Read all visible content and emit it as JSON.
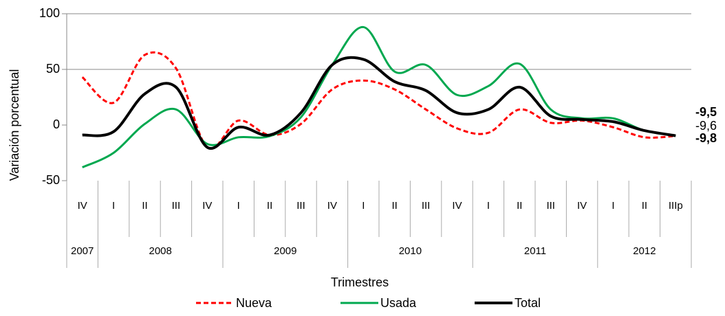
{
  "chart_data": {
    "type": "line",
    "y_label": "Variación porcentual",
    "x_label": "Trimestres",
    "categories": [
      "IV",
      "I",
      "II",
      "III",
      "IV",
      "I",
      "II",
      "III",
      "IV",
      "I",
      "II",
      "III",
      "IV",
      "I",
      "II",
      "III",
      "IV",
      "I",
      "II",
      "IIIp"
    ],
    "years": [
      "2007",
      "2008",
      "2009",
      "2010",
      "2011",
      "2012"
    ],
    "ylim": [
      -50,
      100
    ],
    "yticks": [
      -50,
      0,
      50,
      100
    ],
    "grid": true,
    "series": [
      {
        "name": "Nueva",
        "color": "#ff0000",
        "dash": true,
        "values": [
          43,
          20,
          63,
          51,
          -20,
          4,
          -9,
          1,
          32,
          40,
          32,
          14,
          -3,
          -7,
          14,
          2,
          4,
          -2,
          -11,
          -9.8
        ],
        "value_labels": [
          null,
          null,
          null,
          null,
          null,
          null,
          null,
          null,
          null,
          null,
          null,
          null,
          null,
          null,
          null,
          null,
          null,
          null,
          null,
          "-9,8"
        ]
      },
      {
        "name": "Usada",
        "color": "#00a84f",
        "dash": false,
        "values": [
          -38,
          -25,
          1,
          14,
          -17,
          -11,
          -10,
          7,
          54,
          88,
          48,
          54,
          27,
          35,
          55,
          14,
          6,
          6,
          -5,
          -9.5
        ],
        "value_labels": [
          null,
          null,
          null,
          null,
          null,
          null,
          null,
          null,
          null,
          null,
          null,
          null,
          null,
          null,
          null,
          null,
          null,
          null,
          null,
          "-9,5"
        ]
      },
      {
        "name": "Total",
        "color": "#000000",
        "dash": false,
        "values": [
          -9,
          -6,
          28,
          34,
          -20,
          -2,
          -9,
          11,
          54,
          59,
          39,
          31,
          11,
          14,
          34,
          8,
          5,
          3,
          -5,
          -9.6
        ],
        "value_labels": [
          null,
          null,
          null,
          null,
          null,
          null,
          null,
          null,
          null,
          null,
          null,
          null,
          null,
          null,
          null,
          null,
          null,
          null,
          null,
          "-9,6"
        ]
      }
    ]
  }
}
